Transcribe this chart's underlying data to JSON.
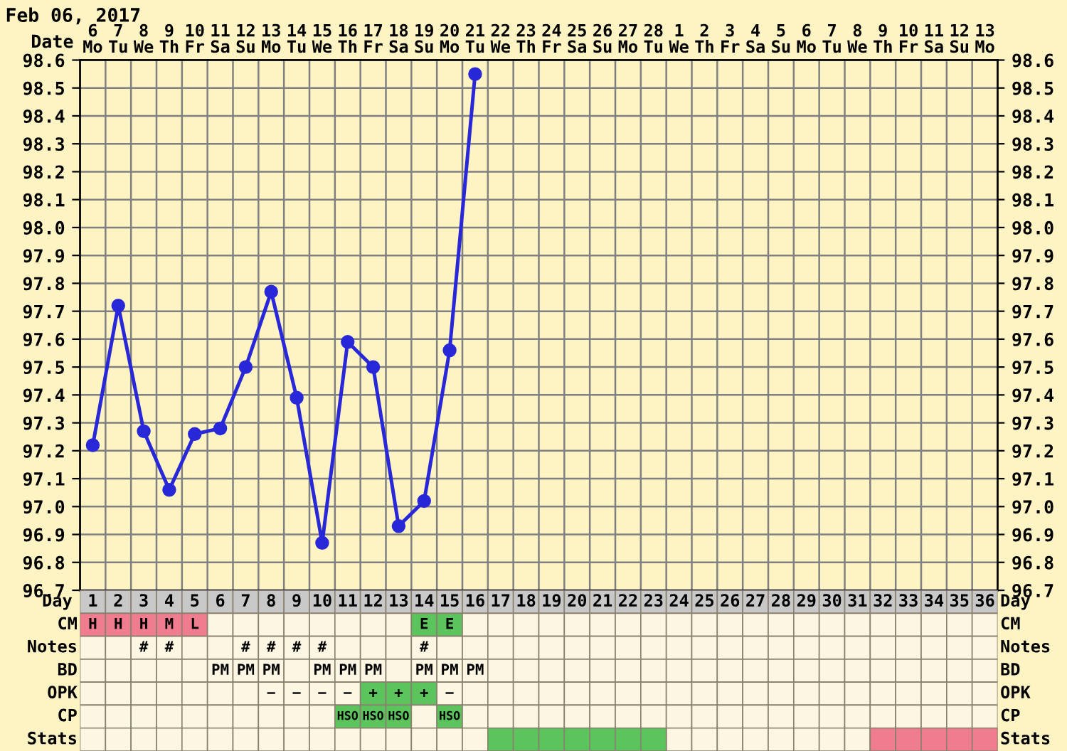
{
  "chart_data": [
    {
      "type": "line",
      "title": "Feb 06, 2017",
      "xlabel": "Date",
      "categories": [
        "6\nMo",
        "7\nTu",
        "8\nWe",
        "9\nTh",
        "10\nFr",
        "11\nSa",
        "12\nSu",
        "13\nMo",
        "14\nTu",
        "15\nWe",
        "16\nTh",
        "17\nFr",
        "18\nSa",
        "19\nSu",
        "20\nMo",
        "21\nTu",
        "22\nWe",
        "23\nTh",
        "24\nFr",
        "25\nSa",
        "26\nSu",
        "27\nMo",
        "28\nTu",
        "1\nWe",
        "2\nTh",
        "3\nFr",
        "4\nSa",
        "5\nSu",
        "6\nMo",
        "7\nTu",
        "8\nWe",
        "9\nTh",
        "10\nFr",
        "11\nSa",
        "12\nSu",
        "13\nMo"
      ],
      "series": [
        {
          "color": "#2828d8",
          "values": [
            97.22,
            97.72,
            97.27,
            97.06,
            97.26,
            97.28,
            97.5,
            97.77,
            97.39,
            96.87,
            97.59,
            97.5,
            96.93,
            97.02,
            97.56,
            98.55,
            null,
            null,
            null,
            null,
            null,
            null,
            null,
            null,
            null,
            null,
            null,
            null,
            null,
            null,
            null,
            null,
            null,
            null,
            null,
            null
          ]
        }
      ],
      "ylim": [
        96.7,
        98.6
      ],
      "yticks": [
        96.7,
        96.8,
        96.9,
        {
          "value": 97,
          "label": "97.0"
        },
        97.1,
        97.2,
        97.3,
        97.4,
        97.5,
        97.6,
        97.7,
        97.8,
        97.9,
        {
          "value": 98,
          "label": "98.0"
        },
        98.1,
        98.2,
        98.3,
        98.4,
        98.5,
        98.6
      ],
      "y2lim": [
        96.7,
        98.6
      ],
      "y2ticks": [
        96.7,
        96.8,
        96.9,
        {
          "value": 97,
          "label": "97.0"
        },
        97.1,
        97.2,
        97.3,
        97.4,
        97.5,
        97.6,
        97.7,
        97.8,
        97.9,
        {
          "value": 98,
          "label": "98.0"
        },
        98.1,
        98.2,
        98.3,
        98.4,
        98.5,
        98.6
      ],
      "marker": "circle",
      "line_style": "solid",
      "grid": true
    },
    {
      "type": "heatmap",
      "xlabel": "Day",
      "categories": [
        "1",
        "2",
        "3",
        "4",
        "5",
        "6",
        "7",
        "8",
        "9",
        "10",
        "11",
        "12",
        "13",
        "14",
        "15",
        "16",
        "17",
        "18",
        "19",
        "20",
        "21",
        "22",
        "23",
        "24",
        "25",
        "26",
        "27",
        "28",
        "29",
        "30",
        "31",
        "32",
        "33",
        "34",
        "35",
        "36"
      ],
      "y_categories": [
        "CM",
        "Notes",
        "BD",
        "OPK",
        "CP",
        "Stats"
      ],
      "y2_categories": [
        "CM",
        "Notes",
        "BD",
        "OPK",
        "CP",
        "Stats"
      ],
      "cells": [
        [
          null,
          null,
          null,
          null,
          null,
          null,
          null,
          null,
          null,
          null,
          null,
          null,
          null,
          null,
          null,
          null,
          null,
          null,
          null,
          null,
          null,
          null,
          null,
          null,
          null,
          null,
          null,
          null,
          null,
          null,
          null,
          null,
          null,
          null,
          null,
          null
        ],
        [
          null,
          null,
          null,
          null,
          null,
          null,
          null,
          null,
          null,
          null,
          null,
          null,
          null,
          null,
          null,
          null,
          null,
          null,
          null,
          null,
          null,
          null,
          null,
          null,
          null,
          null,
          null,
          null,
          null,
          null,
          null,
          null,
          null,
          null,
          null,
          null
        ],
        [
          null,
          null,
          null,
          null,
          null,
          null,
          null,
          null,
          null,
          null,
          null,
          null,
          null,
          null,
          null,
          null,
          null,
          null,
          null,
          null,
          null,
          null,
          null,
          null,
          null,
          null,
          null,
          null,
          null,
          null,
          null,
          null,
          null,
          null,
          null,
          null
        ],
        [
          null,
          null,
          null,
          null,
          null,
          null,
          null,
          null,
          null,
          null,
          null,
          null,
          null,
          null,
          null,
          null,
          null,
          null,
          null,
          null,
          null,
          null,
          null,
          null,
          null,
          null,
          null,
          null,
          null,
          null,
          null,
          null,
          null,
          null,
          null,
          null
        ],
        [
          null,
          null,
          null,
          null,
          null,
          null,
          null,
          null,
          null,
          null,
          null,
          null,
          null,
          null,
          null,
          null,
          null,
          null,
          null,
          null,
          null,
          null,
          null,
          null,
          null,
          null,
          null,
          null,
          null,
          null,
          null,
          null,
          null,
          null,
          null,
          null
        ],
        [
          null,
          null,
          null,
          null,
          null,
          null,
          null,
          null,
          null,
          null,
          null,
          null,
          null,
          null,
          null,
          null,
          null,
          null,
          null,
          null,
          null,
          null,
          null,
          null,
          null,
          null,
          null,
          null,
          null,
          null,
          null,
          null,
          null,
          null,
          null,
          null
        ]
      ],
      "cell_labels": [
        [
          "H",
          "H",
          "H",
          "M",
          "L",
          null,
          null,
          null,
          null,
          null,
          null,
          null,
          null,
          "E",
          "E",
          null,
          null,
          null,
          null,
          null,
          null,
          null,
          null,
          null,
          null,
          null,
          null,
          null,
          null,
          null,
          null,
          null,
          null,
          null,
          null,
          null
        ],
        [
          null,
          null,
          "#",
          "#",
          null,
          null,
          "#",
          "#",
          "#",
          "#",
          null,
          null,
          null,
          "#",
          null,
          null,
          null,
          null,
          null,
          null,
          null,
          null,
          null,
          null,
          null,
          null,
          null,
          null,
          null,
          null,
          null,
          null,
          null,
          null,
          null,
          null
        ],
        [
          null,
          null,
          null,
          null,
          null,
          "PM",
          "PM",
          "PM",
          null,
          "PM",
          "PM",
          "PM",
          null,
          "PM",
          "PM",
          "PM",
          null,
          null,
          null,
          null,
          null,
          null,
          null,
          null,
          null,
          null,
          null,
          null,
          null,
          null,
          null,
          null,
          null,
          null,
          null,
          null
        ],
        [
          null,
          null,
          null,
          null,
          null,
          null,
          null,
          "−",
          "−",
          "−",
          "−",
          "+",
          "+",
          "+",
          "−",
          null,
          null,
          null,
          null,
          null,
          null,
          null,
          null,
          null,
          null,
          null,
          null,
          null,
          null,
          null,
          null,
          null,
          null,
          null,
          null,
          null
        ],
        [
          null,
          null,
          null,
          null,
          null,
          null,
          null,
          null,
          null,
          null,
          "HSO",
          "HSO",
          "HSO",
          null,
          "HSO",
          null,
          null,
          null,
          null,
          null,
          null,
          null,
          null,
          null,
          null,
          null,
          null,
          null,
          null,
          null,
          null,
          null,
          null,
          null,
          null,
          null
        ],
        [
          null,
          null,
          null,
          null,
          null,
          null,
          null,
          null,
          null,
          null,
          null,
          null,
          null,
          null,
          null,
          null,
          null,
          null,
          null,
          null,
          null,
          null,
          null,
          null,
          null,
          null,
          null,
          null,
          null,
          null,
          null,
          null,
          null,
          null,
          null,
          null
        ]
      ],
      "colors": [
        [
          "#f07c90",
          "#f07c90",
          "#f07c90",
          "#f07c90",
          "#f07c90",
          null,
          null,
          null,
          null,
          null,
          null,
          null,
          null,
          "#5cc45c",
          "#5cc45c",
          null,
          null,
          null,
          null,
          null,
          null,
          null,
          null,
          null,
          null,
          null,
          null,
          null,
          null,
          null,
          null,
          null,
          null,
          null,
          null,
          null
        ],
        [
          null,
          null,
          null,
          null,
          null,
          null,
          null,
          null,
          null,
          null,
          null,
          null,
          null,
          null,
          null,
          null,
          null,
          null,
          null,
          null,
          null,
          null,
          null,
          null,
          null,
          null,
          null,
          null,
          null,
          null,
          null,
          null,
          null,
          null,
          null,
          null
        ],
        [
          null,
          null,
          null,
          null,
          null,
          null,
          null,
          null,
          null,
          null,
          null,
          null,
          null,
          null,
          null,
          null,
          null,
          null,
          null,
          null,
          null,
          null,
          null,
          null,
          null,
          null,
          null,
          null,
          null,
          null,
          null,
          null,
          null,
          null,
          null,
          null
        ],
        [
          null,
          null,
          null,
          null,
          null,
          null,
          null,
          null,
          null,
          null,
          null,
          "#5cc45c",
          "#5cc45c",
          "#5cc45c",
          null,
          null,
          null,
          null,
          null,
          null,
          null,
          null,
          null,
          null,
          null,
          null,
          null,
          null,
          null,
          null,
          null,
          null,
          null,
          null,
          null,
          null
        ],
        [
          null,
          null,
          null,
          null,
          null,
          null,
          null,
          null,
          null,
          null,
          "#5cc45c",
          "#5cc45c",
          "#5cc45c",
          null,
          "#5cc45c",
          null,
          null,
          null,
          null,
          null,
          null,
          null,
          null,
          null,
          null,
          null,
          null,
          null,
          null,
          null,
          null,
          null,
          null,
          null,
          null,
          null
        ],
        [
          null,
          null,
          null,
          null,
          null,
          null,
          null,
          null,
          null,
          null,
          null,
          null,
          null,
          null,
          null,
          null,
          "#5cc45c",
          "#5cc45c",
          "#5cc45c",
          "#5cc45c",
          "#5cc45c",
          "#5cc45c",
          "#5cc45c",
          null,
          null,
          null,
          null,
          null,
          null,
          null,
          null,
          "#f07c90",
          "#f07c90",
          "#f07c90",
          "#f07c90",
          "#f07c90"
        ]
      ]
    }
  ]
}
